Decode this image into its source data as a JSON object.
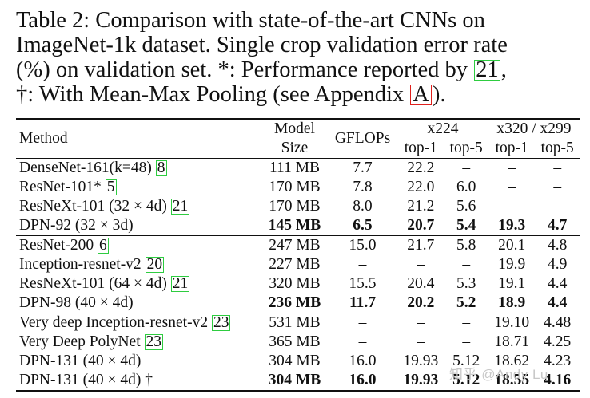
{
  "caption": {
    "line1": "Table 2:  Comparison with state-of-the-art CNNs on",
    "line2": "ImageNet-1k dataset.  Single crop validation error rate",
    "line3a": "(%) on validation set.  *: Performance reported by ",
    "line3_cite": "21",
    "line3b": ",",
    "line4a": "†: With Mean-Max Pooling (see Appendix ",
    "line4_ref": "A",
    "line4b": ")."
  },
  "header": {
    "method": "Method",
    "model_size_1": "Model",
    "model_size_2": "Size",
    "gflops": "GFLOPs",
    "group1": "x224",
    "group2": "x320 / x299",
    "top1": "top-1",
    "top5": "top-5"
  },
  "rows": [
    {
      "name": "DenseNet-161(k=48) ",
      "cite": "8",
      "size": "111 MB",
      "gflops": "7.7",
      "t1": "22.2",
      "t5": "–",
      "u1": "–",
      "u5": "–"
    },
    {
      "name": "ResNet-101* ",
      "cite": "5",
      "size": "170 MB",
      "gflops": "7.8",
      "t1": "22.0",
      "t5": "6.0",
      "u1": "–",
      "u5": "–"
    },
    {
      "name": "ResNeXt-101 (32 × 4d) ",
      "cite": "21",
      "size": "170 MB",
      "gflops": "8.0",
      "t1": "21.2",
      "t5": "5.6",
      "u1": "–",
      "u5": "–"
    },
    {
      "name": "DPN-92 (32 × 3d)",
      "cite": "",
      "size": "145 MB",
      "gflops": "6.5",
      "t1": "20.7",
      "t5": "5.4",
      "u1": "19.3",
      "u5": "4.7"
    },
    {
      "name": "ResNet-200 ",
      "cite": "6",
      "size": "247 MB",
      "gflops": "15.0",
      "t1": "21.7",
      "t5": "5.8",
      "u1": "20.1",
      "u5": "4.8"
    },
    {
      "name": "Inception-resnet-v2 ",
      "cite": "20",
      "size": "227 MB",
      "gflops": "–",
      "t1": "–",
      "t5": "–",
      "u1": "19.9",
      "u5": "4.9"
    },
    {
      "name": "ResNeXt-101 (64 × 4d) ",
      "cite": "21",
      "size": "320 MB",
      "gflops": "15.5",
      "t1": "20.4",
      "t5": "5.3",
      "u1": "19.1",
      "u5": "4.4"
    },
    {
      "name": "DPN-98 (40 × 4d)",
      "cite": "",
      "size": "236 MB",
      "gflops": "11.7",
      "t1": "20.2",
      "t5": "5.2",
      "u1": "18.9",
      "u5": "4.4"
    },
    {
      "name": "Very deep Inception-resnet-v2 ",
      "cite": "23",
      "size": "531 MB",
      "gflops": "–",
      "t1": "–",
      "t5": "–",
      "u1": "19.10",
      "u5": "4.48"
    },
    {
      "name": "Very Deep PolyNet ",
      "cite": "23",
      "size": "365 MB",
      "gflops": "–",
      "t1": "–",
      "t5": "–",
      "u1": "18.71",
      "u5": "4.25"
    },
    {
      "name": "DPN-131 (40 × 4d)",
      "cite": "",
      "size": "304 MB",
      "gflops": "16.0",
      "t1": "19.93",
      "t5": "5.12",
      "u1": "18.62",
      "u5": "4.23"
    },
    {
      "name": "DPN-131 (40 × 4d) †",
      "cite": "",
      "size": "304 MB",
      "gflops": "16.0",
      "t1": "19.93",
      "t5": "5.12",
      "u1": "18.55",
      "u5": "4.16"
    }
  ],
  "watermark": "知乎 @Andy Lu"
}
